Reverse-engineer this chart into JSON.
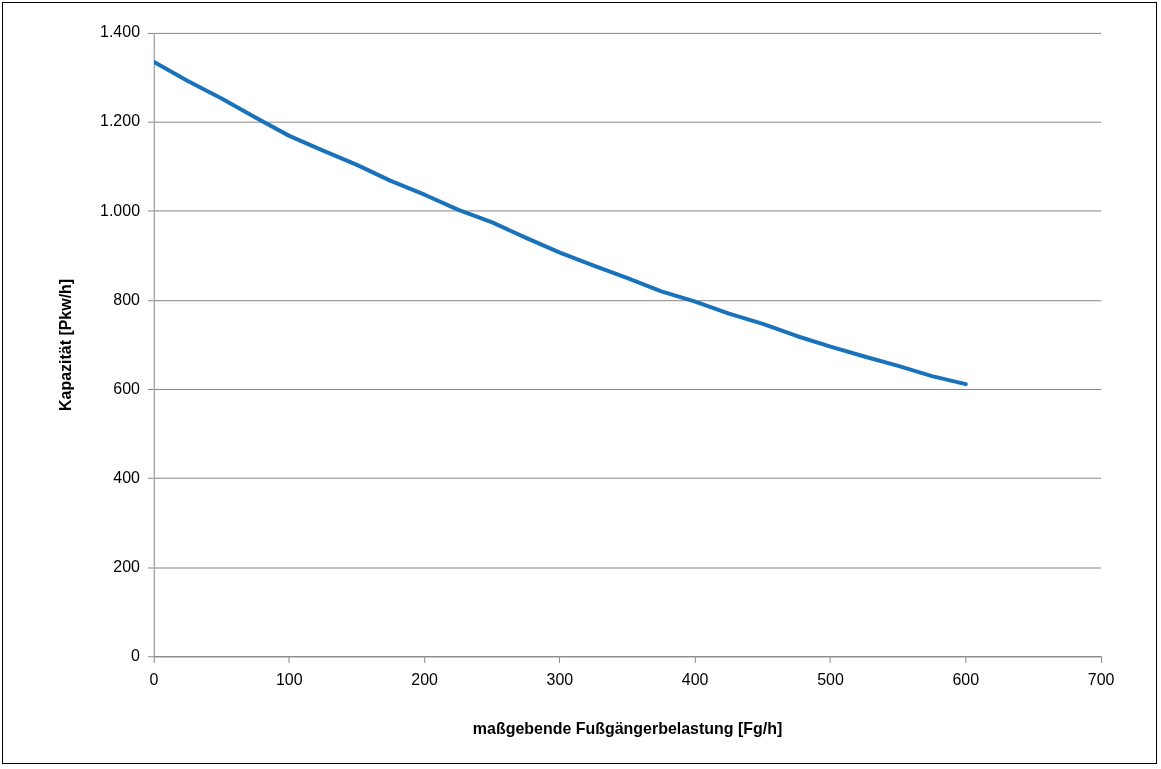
{
  "chart_data": {
    "type": "line",
    "xlabel": "maßgebende Fußgängerbelastung [Fg/h]",
    "ylabel": "Kapazität [Pkw/h]",
    "series": [
      {
        "color": "#1a72bb",
        "x": [
          0,
          25,
          50,
          75,
          100,
          125,
          150,
          175,
          200,
          225,
          250,
          275,
          300,
          325,
          350,
          375,
          400,
          425,
          450,
          475,
          500,
          525,
          550,
          575,
          600
        ],
        "values": [
          1335,
          1292,
          1253,
          1210,
          1169,
          1136,
          1104,
          1068,
          1037,
          1003,
          975,
          940,
          907,
          878,
          850,
          820,
          797,
          770,
          747,
          720,
          696,
          674,
          653,
          630,
          612
        ]
      }
    ],
    "xlim": [
      0,
      700
    ],
    "xticks": [
      0,
      100,
      200,
      300,
      400,
      500,
      600,
      700
    ],
    "ylim": [
      0,
      1400
    ],
    "yticks": [
      0,
      200,
      400,
      600,
      800,
      {
        "value": 1000,
        "label": "1.000"
      },
      {
        "value": 1200,
        "label": "1.200"
      },
      {
        "value": 1400,
        "label": "1.400"
      }
    ],
    "grid": "y",
    "legend": false,
    "marker": "none",
    "line_style": "solid"
  }
}
